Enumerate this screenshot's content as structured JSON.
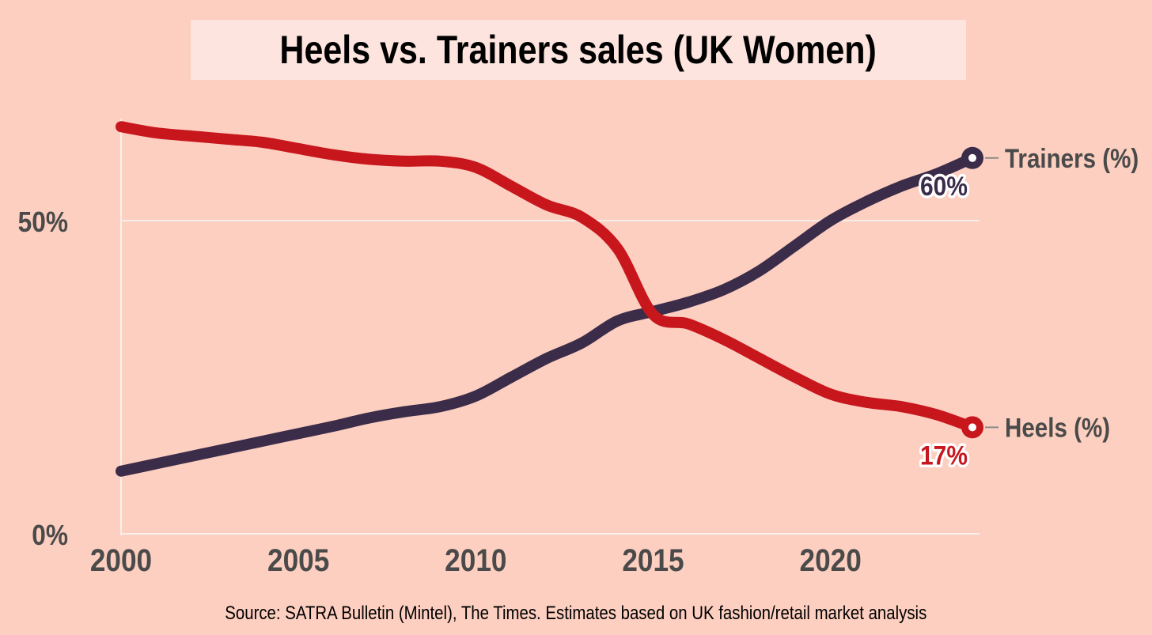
{
  "title": "Heels vs. Trainers sales (UK Women)",
  "source": "Source: SATRA Bulletin (Mintel), The Times. Estimates based on UK fashion/retail market analysis",
  "colors": {
    "background": "#fdcfc0",
    "title_box": "#fde4de",
    "heels": "#c8161d",
    "trainers": "#3b2c4a",
    "axis_text": "#4a4a4a",
    "gridline": "#f6ece8"
  },
  "chart_data": {
    "type": "line",
    "title": "Heels vs. Trainers sales (UK Women)",
    "xlabel": "",
    "ylabel": "",
    "xlim": [
      2000,
      2024
    ],
    "ylim": [
      0,
      65
    ],
    "x_ticks": [
      2000,
      2005,
      2010,
      2015,
      2020
    ],
    "x_tick_labels": [
      "2000",
      "2005",
      "2010",
      "2015",
      "2020"
    ],
    "y_ticks": [
      0,
      50
    ],
    "y_tick_labels": [
      "0%",
      "50%"
    ],
    "grid": "horizontal at 50%",
    "legend": "direct labels at line ends (right)",
    "series": [
      {
        "name": "Heels (%)",
        "color": "#c8161d",
        "x": [
          2000,
          2001,
          2002,
          2003,
          2004,
          2005,
          2006,
          2007,
          2008,
          2009,
          2010,
          2011,
          2012,
          2013,
          2014,
          2015,
          2016,
          2017,
          2018,
          2019,
          2020,
          2021,
          2022,
          2023,
          2024
        ],
        "y": [
          65,
          64,
          63.5,
          63,
          62.5,
          61.5,
          60.5,
          59.8,
          59.5,
          59.5,
          58.5,
          55.5,
          52.5,
          50.5,
          45.5,
          35,
          33.5,
          31,
          28,
          25,
          22.3,
          21,
          20.3,
          19,
          17
        ]
      },
      {
        "name": "Trainers (%)",
        "color": "#3b2c4a",
        "x": [
          2000,
          2001,
          2002,
          2003,
          2004,
          2005,
          2006,
          2007,
          2008,
          2009,
          2010,
          2011,
          2012,
          2013,
          2014,
          2015,
          2016,
          2017,
          2018,
          2019,
          2020,
          2021,
          2022,
          2023,
          2024
        ],
        "y": [
          10,
          11.2,
          12.4,
          13.6,
          14.8,
          16,
          17.2,
          18.5,
          19.5,
          20.3,
          22,
          25,
          28,
          30.5,
          34,
          35.5,
          37,
          39,
          42,
          46,
          50,
          53,
          55.5,
          57.5,
          60
        ]
      }
    ],
    "end_labels": [
      {
        "series": "Trainers (%)",
        "value_label": "60%"
      },
      {
        "series": "Heels (%)",
        "value_label": "17%"
      }
    ]
  }
}
